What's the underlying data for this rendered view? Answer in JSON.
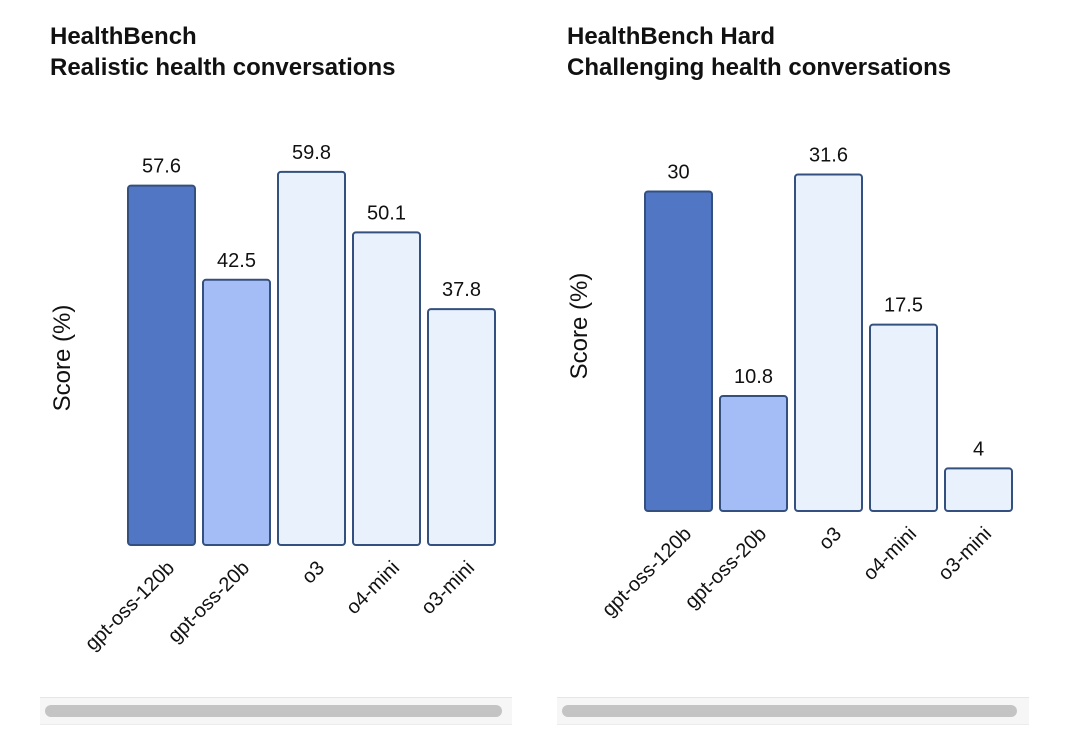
{
  "chart_data": [
    {
      "type": "bar",
      "title": "HealthBench",
      "subtitle": "Realistic health conversations",
      "ylabel": "Score (%)",
      "xlabel": "",
      "categories": [
        "gpt-oss-120b",
        "gpt-oss-20b",
        "o3",
        "o4-mini",
        "o3-mini"
      ],
      "values": [
        57.6,
        42.5,
        59.8,
        50.1,
        37.8
      ],
      "value_labels": [
        "57.6",
        "42.5",
        "59.8",
        "50.1",
        "37.8"
      ],
      "bar_colors": [
        "#5176c4",
        "#a5bdf6",
        "#e9f1fd",
        "#e9f1fd",
        "#e9f1fd"
      ],
      "ylim": [
        0,
        60
      ],
      "grid": false,
      "legend": "none"
    },
    {
      "type": "bar",
      "title": "HealthBench Hard",
      "subtitle": "Challenging health conversations",
      "ylabel": "Score (%)",
      "xlabel": "",
      "categories": [
        "gpt-oss-120b",
        "gpt-oss-20b",
        "o3",
        "o4-mini",
        "o3-mini"
      ],
      "values": [
        30,
        10.8,
        31.6,
        17.5,
        4
      ],
      "value_labels": [
        "30",
        "10.8",
        "31.6",
        "17.5",
        "4"
      ],
      "bar_colors": [
        "#5176c4",
        "#a5bdf6",
        "#e9f1fd",
        "#e9f1fd",
        "#e9f1fd"
      ],
      "ylim": [
        0,
        32
      ],
      "grid": false,
      "legend": "none"
    }
  ],
  "colors": {
    "bar_stroke": "#34507f",
    "scrollbar_thumb": "#c4c4c4"
  }
}
